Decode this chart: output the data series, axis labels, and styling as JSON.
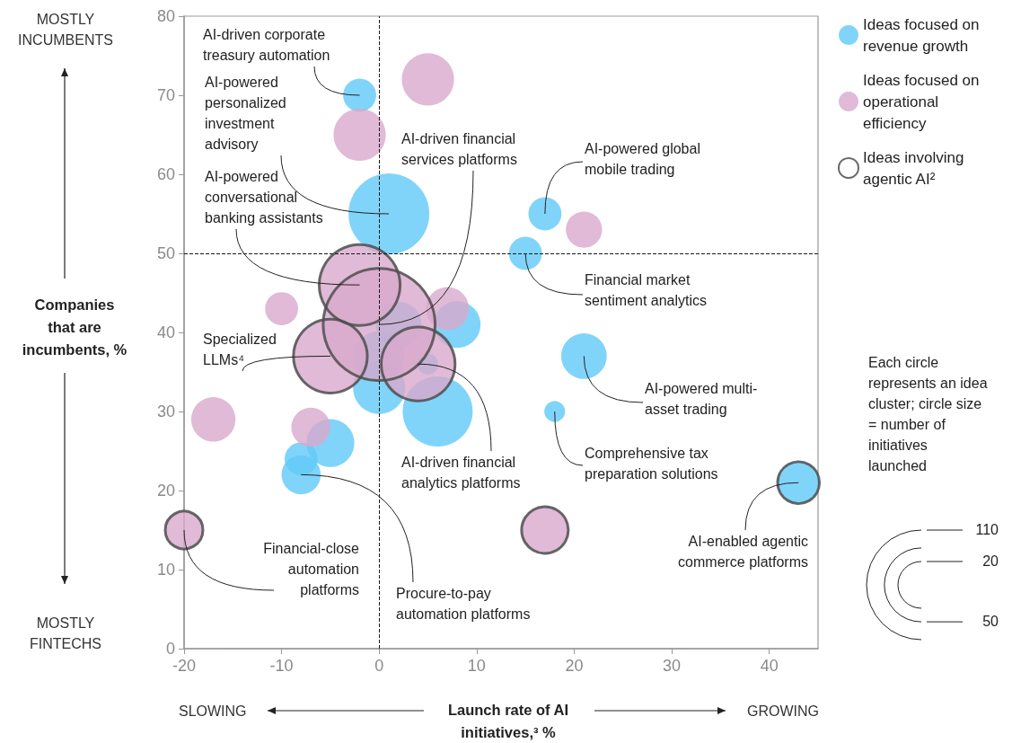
{
  "chart_data": {
    "type": "bubble",
    "xlabel": "Launch rate of AI initiatives,³ %",
    "ylabel": "Companies that are incumbents, %",
    "xlim": [
      -20,
      45
    ],
    "xticks": [
      -20,
      -10,
      0,
      10,
      20,
      30,
      40
    ],
    "ylim": [
      0,
      80
    ],
    "yticks": [
      0,
      10,
      20,
      30,
      40,
      50,
      60,
      70,
      80
    ],
    "grid": false,
    "legend": "top right",
    "marker": "circle",
    "size_legend": [
      110,
      20,
      50
    ],
    "series": [
      {
        "name": "Ideas focused on revenue growth",
        "color": "#62c9f7",
        "x": [
          -2,
          1,
          2,
          8,
          0,
          0,
          5,
          6,
          -5,
          -8,
          -8,
          17,
          15,
          21,
          18,
          43
        ],
        "values": [
          70,
          55,
          41,
          41,
          37,
          33,
          36,
          30,
          26,
          24,
          22,
          55,
          50,
          37,
          30,
          21
        ],
        "sizes": [
          10,
          60,
          19,
          20,
          23,
          25,
          4,
          45,
          21,
          10,
          14,
          10,
          10,
          19,
          4,
          16
        ]
      },
      {
        "name": "Ideas focused on operational efficiency",
        "color": "#d8a9cc",
        "x": [
          5,
          -2,
          -10,
          7,
          -17,
          -7,
          21,
          -2,
          0,
          -5,
          4,
          -20,
          17
        ],
        "values": [
          72,
          65,
          43,
          43,
          29,
          28,
          53,
          46,
          41,
          37,
          36,
          15,
          15
        ],
        "sizes": [
          25,
          25,
          10,
          17,
          18,
          14,
          12,
          60,
          115,
          50,
          50,
          13,
          20
        ]
      },
      {
        "name": "Ideas involving agentic AI²",
        "color": "#4d4d4d",
        "x": [
          -2,
          0,
          -5,
          4,
          -20,
          17,
          43
        ],
        "values": [
          46,
          41,
          37,
          36,
          15,
          15,
          21
        ],
        "sizes": [
          60,
          115,
          50,
          50,
          13,
          20,
          16
        ]
      }
    ],
    "ref_lines": [
      {
        "axis": "x",
        "value": 0,
        "color": "#1a1a1a",
        "line_style": "dashed"
      },
      {
        "axis": "y",
        "value": 50,
        "color": "#1a1a1a",
        "line_style": "dashed"
      }
    ],
    "annotations": [
      {
        "text": "AI-driven corporate treasury automation",
        "x": -2,
        "y": 70
      },
      {
        "text": "AI-powered personalized investment advisory",
        "x": 1,
        "y": 55
      },
      {
        "text": "AI-powered conversational banking assistants",
        "x": -2,
        "y": 46
      },
      {
        "text": "AI-driven financial services platforms",
        "x": 0,
        "y": 41
      },
      {
        "text": "AI-powered global mobile trading",
        "x": 17,
        "y": 55
      },
      {
        "text": "Financial market sentiment analytics",
        "x": 15,
        "y": 50
      },
      {
        "text": "Specialized LLMs⁴",
        "x": -5,
        "y": 37
      },
      {
        "text": "AI-powered multi-asset trading",
        "x": 21,
        "y": 37
      },
      {
        "text": "Comprehensive tax preparation solutions",
        "x": 18,
        "y": 30
      },
      {
        "text": "AI-driven financial analytics platforms",
        "x": 4,
        "y": 36
      },
      {
        "text": "AI-enabled agentic commerce platforms",
        "x": 43,
        "y": 21
      },
      {
        "text": "Financial-close automation platforms",
        "x": -20,
        "y": 15
      },
      {
        "text": "Procure-to-pay automation platforms",
        "x": -8,
        "y": 22
      },
      "MOSTLY INCUMBENTS",
      "MOSTLY FINTECHS",
      "SLOWING",
      "GROWING",
      "Each circle represents an idea cluster; circle size = number of initiatives launched"
    ]
  }
}
